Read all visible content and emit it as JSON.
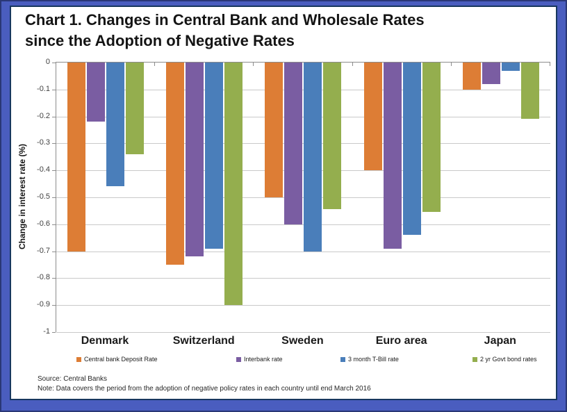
{
  "colors": {
    "frame_blue": "#4a5dbf",
    "frame_outer_border": "#2a3776",
    "panel_border": "#17375e",
    "axis_line": "#8c8c8c",
    "gridline": "#c9c9c9"
  },
  "chart_data": {
    "type": "bar",
    "title": "Chart 1. Changes in Central Bank and Wholesale Rates\nsince the Adoption of Negative Rates",
    "ylabel": "Change in interest rate (%)",
    "xlabel": "",
    "ylim": [
      0,
      -1
    ],
    "grid": true,
    "legend_position": "bottom",
    "yticks": [
      "0",
      "-0.1",
      "-0.2",
      "-0.3",
      "-0.4",
      "-0.5",
      "-0.6",
      "-0.7",
      "-0.8",
      "-0.9",
      "-1"
    ],
    "categories": [
      "Denmark",
      "Switzerland",
      "Sweden",
      "Euro area",
      "Japan"
    ],
    "series": [
      {
        "name": "Central bank Deposit Rate",
        "color": "#dd7d35",
        "values": [
          -0.7,
          -0.75,
          -0.5,
          -0.4,
          -0.1
        ]
      },
      {
        "name": "Interbank rate",
        "color": "#7a5da2",
        "values": [
          -0.22,
          -0.72,
          -0.6,
          -0.69,
          -0.08
        ]
      },
      {
        "name": "3 month T-Bill rate",
        "color": "#4a7eba",
        "values": [
          -0.46,
          -0.69,
          -0.7,
          -0.64,
          -0.03
        ]
      },
      {
        "name": "2 yr Govt bond rates",
        "color": "#94ae4e",
        "values": [
          -0.34,
          -0.9,
          -0.545,
          -0.555,
          -0.21
        ]
      }
    ],
    "source": "Source: Central Banks",
    "note": "Note: Data covers the period from the adoption of negative policy rates in each country until end March 2016"
  }
}
